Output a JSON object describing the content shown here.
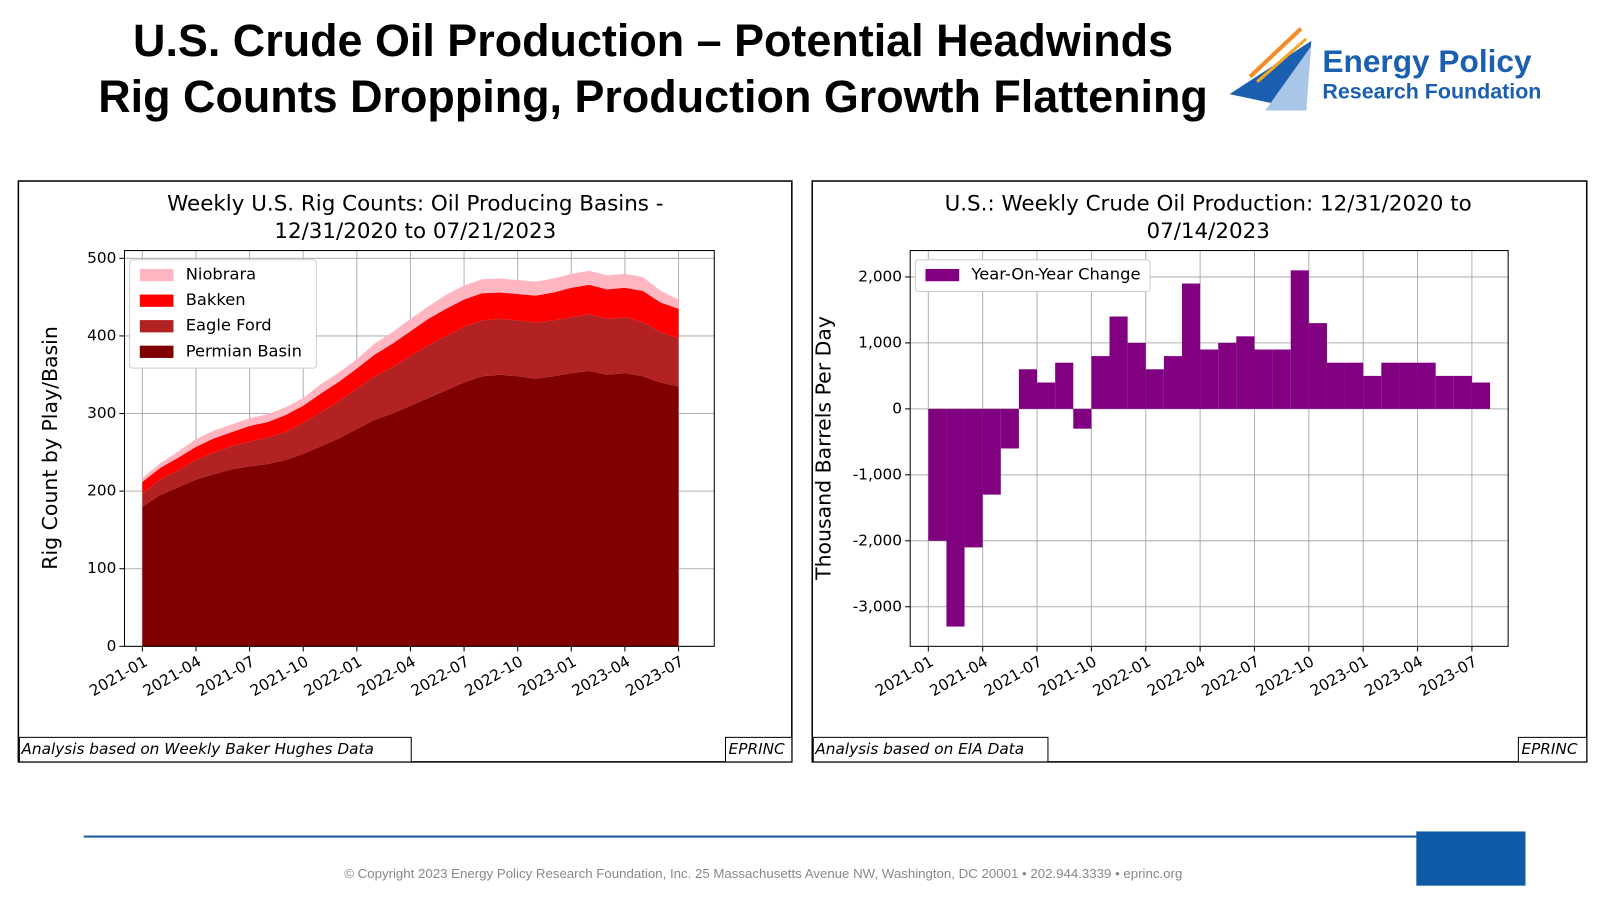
{
  "header": {
    "title": [
      "U.S. Crude Oil Production – Potential Headwinds",
      "Rig Counts Dropping, Production Growth Flattening"
    ],
    "logo": [
      "Energy Policy",
      "Research Foundation"
    ]
  },
  "chart_data": [
    {
      "type": "area",
      "stacked": true,
      "title": [
        "Weekly U.S. Rig Counts: Oil Producing Basins -",
        "12/31/2020 to 07/21/2023"
      ],
      "ylabel": "Rig Count by Play/Basin",
      "note": "Analysis based on Weekly Baker Hughes Data",
      "credit": "EPRINC",
      "legend": "upper left",
      "grid": true,
      "x": [
        "2021-01",
        "2021-02",
        "2021-03",
        "2021-04",
        "2021-05",
        "2021-06",
        "2021-07",
        "2021-08",
        "2021-09",
        "2021-10",
        "2021-11",
        "2021-12",
        "2022-01",
        "2022-02",
        "2022-03",
        "2022-04",
        "2022-05",
        "2022-06",
        "2022-07",
        "2022-08",
        "2022-09",
        "2022-10",
        "2022-11",
        "2022-12",
        "2023-01",
        "2023-02",
        "2023-03",
        "2023-04",
        "2023-05",
        "2023-06",
        "2023-07"
      ],
      "series": [
        {
          "name": "Permian Basin",
          "color": "#800000",
          "values": [
            180,
            195,
            205,
            215,
            222,
            228,
            232,
            235,
            240,
            248,
            258,
            268,
            280,
            292,
            300,
            310,
            320,
            330,
            340,
            348,
            350,
            348,
            345,
            348,
            352,
            355,
            350,
            352,
            348,
            340,
            335
          ]
        },
        {
          "name": "Eagle Ford",
          "color": "#b22222",
          "values": [
            17,
            20,
            22,
            25,
            28,
            30,
            32,
            34,
            36,
            40,
            44,
            48,
            52,
            56,
            60,
            64,
            68,
            70,
            72,
            72,
            72,
            72,
            72,
            72,
            72,
            73,
            72,
            72,
            70,
            65,
            62
          ]
        },
        {
          "name": "Bakken",
          "color": "#ff0000",
          "values": [
            15,
            15,
            16,
            17,
            18,
            18,
            20,
            20,
            22,
            22,
            24,
            25,
            26,
            28,
            30,
            32,
            34,
            35,
            35,
            35,
            34,
            34,
            35,
            36,
            38,
            38,
            38,
            38,
            40,
            38,
            38
          ]
        },
        {
          "name": "Niobrara",
          "color": "#ffb6c1",
          "values": [
            5,
            6,
            8,
            10,
            10,
            10,
            10,
            10,
            10,
            10,
            12,
            12,
            12,
            14,
            15,
            16,
            16,
            18,
            18,
            18,
            18,
            18,
            18,
            18,
            18,
            18,
            18,
            18,
            18,
            15,
            12
          ]
        }
      ],
      "xlim": [
        "2020-12",
        "2023-09"
      ],
      "xticks": [
        "2021-01",
        "2021-04",
        "2021-07",
        "2021-10",
        "2022-01",
        "2022-04",
        "2022-07",
        "2022-10",
        "2023-01",
        "2023-04",
        "2023-07"
      ],
      "ylim": [
        0,
        510
      ],
      "yticks": [
        0,
        100,
        200,
        300,
        400,
        500
      ]
    },
    {
      "type": "bar",
      "title": [
        "U.S.: Weekly Crude Oil Production: 12/31/2020  to",
        "07/14/2023"
      ],
      "ylabel": "Thousand Barrels Per Day",
      "note": "Analysis based on EIA Data",
      "credit": "EPRINC",
      "legend": "upper left",
      "grid": true,
      "x": [
        "2021-01",
        "2021-02",
        "2021-03",
        "2021-04",
        "2021-05",
        "2021-06",
        "2021-07",
        "2021-08",
        "2021-09",
        "2021-10",
        "2021-11",
        "2021-12",
        "2022-01",
        "2022-02",
        "2022-03",
        "2022-04",
        "2022-05",
        "2022-06",
        "2022-07",
        "2022-08",
        "2022-09",
        "2022-10",
        "2022-11",
        "2022-12",
        "2023-01",
        "2023-02",
        "2023-03",
        "2023-04",
        "2023-05",
        "2023-06",
        "2023-07"
      ],
      "series": [
        {
          "name": "Year-On-Year Change",
          "color": "#800080",
          "values": [
            -2000,
            -3300,
            -2100,
            -1300,
            -600,
            600,
            400,
            700,
            -300,
            800,
            1400,
            1000,
            600,
            800,
            1900,
            900,
            1000,
            1100,
            900,
            900,
            2100,
            1300,
            700,
            700,
            500,
            700,
            700,
            700,
            500,
            500,
            400
          ]
        }
      ],
      "xlim": [
        "2020-12",
        "2023-09"
      ],
      "xticks": [
        "2021-01",
        "2021-04",
        "2021-07",
        "2021-10",
        "2022-01",
        "2022-04",
        "2022-07",
        "2022-10",
        "2023-01",
        "2023-04",
        "2023-07"
      ],
      "ylim": [
        -3600,
        2400
      ],
      "yticks": [
        {
          "value": -3000,
          "label": "-3,000"
        },
        {
          "value": -2000,
          "label": "-2,000"
        },
        {
          "value": -1000,
          "label": "-1,000"
        },
        0,
        {
          "value": 1000,
          "label": "1,000"
        },
        {
          "value": 2000,
          "label": "2,000"
        }
      ]
    }
  ],
  "footer": "© Copyright 2023 Energy Policy Research Foundation, Inc. 25 Massachusetts Avenue NW, Washington, DC 20001 • 202.944.3339 • eprinc.org"
}
